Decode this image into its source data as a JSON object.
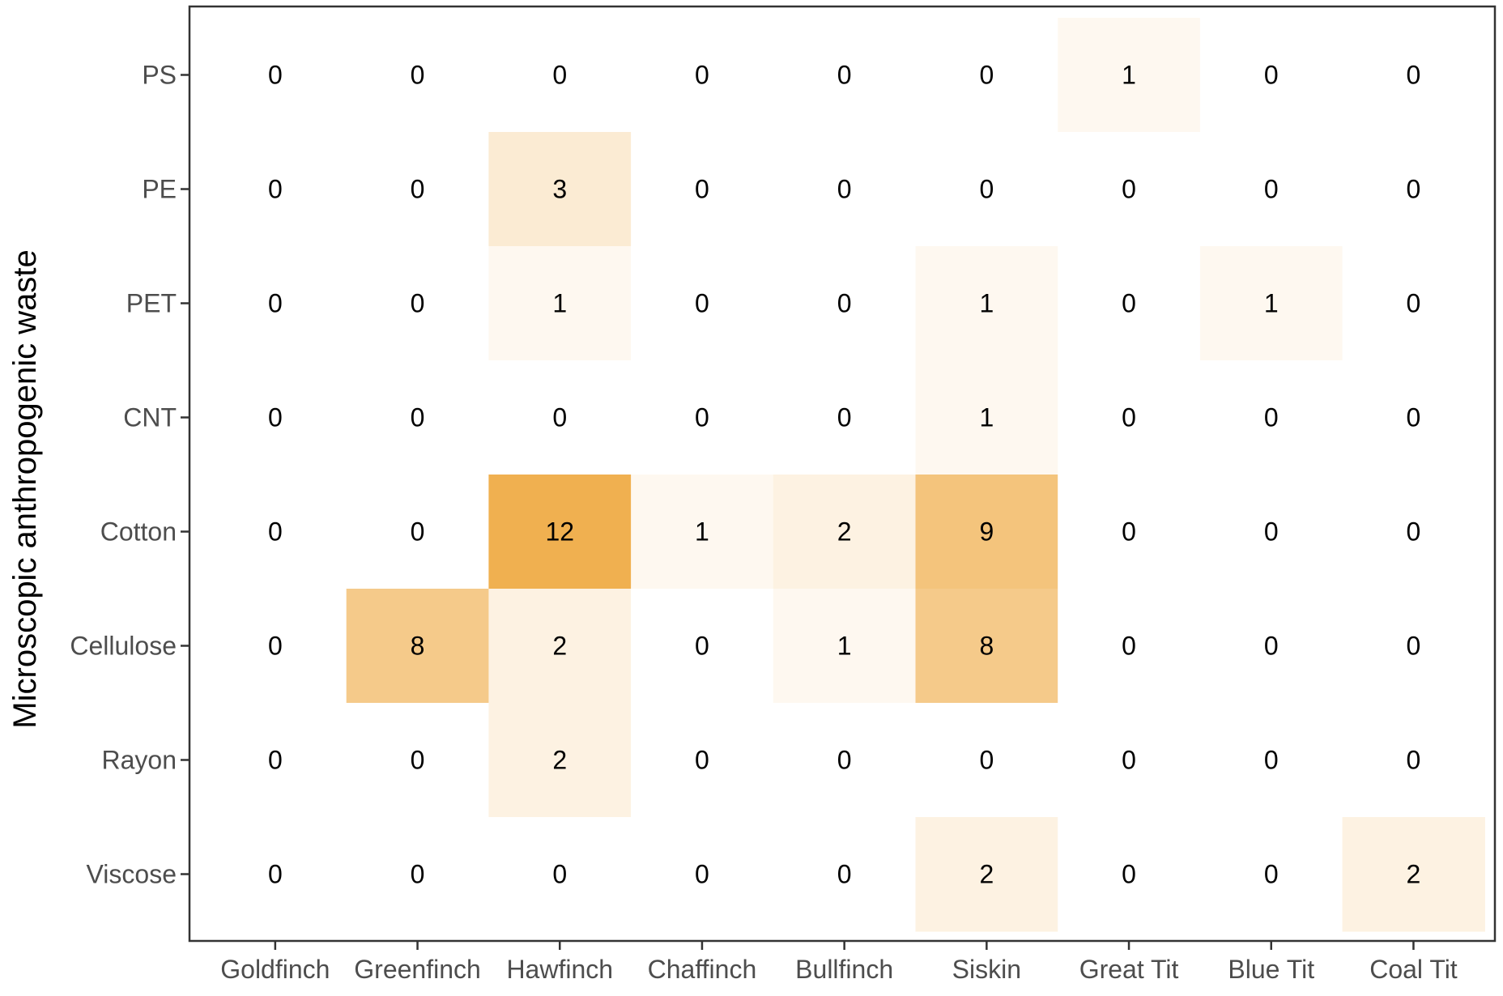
{
  "chart_data": {
    "type": "heatmap",
    "title": "",
    "xlabel": "",
    "ylabel": "Microscopic anthropogenic waste",
    "x_categories": [
      "Goldfinch",
      "Greenfinch",
      "Hawfinch",
      "Chaffinch",
      "Bullfinch",
      "Siskin",
      "Great Tit",
      "Blue Tit",
      "Coal Tit"
    ],
    "y_categories": [
      "PS",
      "PE",
      "PET",
      "CNT",
      "Cotton",
      "Cellulose",
      "Rayon",
      "Viscose"
    ],
    "values": [
      [
        0,
        0,
        0,
        0,
        0,
        0,
        1,
        0,
        0
      ],
      [
        0,
        0,
        3,
        0,
        0,
        0,
        0,
        0,
        0
      ],
      [
        0,
        0,
        1,
        0,
        0,
        1,
        0,
        1,
        0
      ],
      [
        0,
        0,
        0,
        0,
        0,
        1,
        0,
        0,
        0
      ],
      [
        0,
        0,
        12,
        1,
        2,
        9,
        0,
        0,
        0
      ],
      [
        0,
        8,
        2,
        0,
        1,
        8,
        0,
        0,
        0
      ],
      [
        0,
        0,
        2,
        0,
        0,
        0,
        0,
        0,
        0
      ],
      [
        0,
        0,
        0,
        0,
        0,
        2,
        0,
        0,
        2
      ]
    ],
    "color_low": "#ffffff",
    "color_high": "#f0b050",
    "value_range": [
      0,
      12
    ],
    "grid": false,
    "legend": "none"
  }
}
